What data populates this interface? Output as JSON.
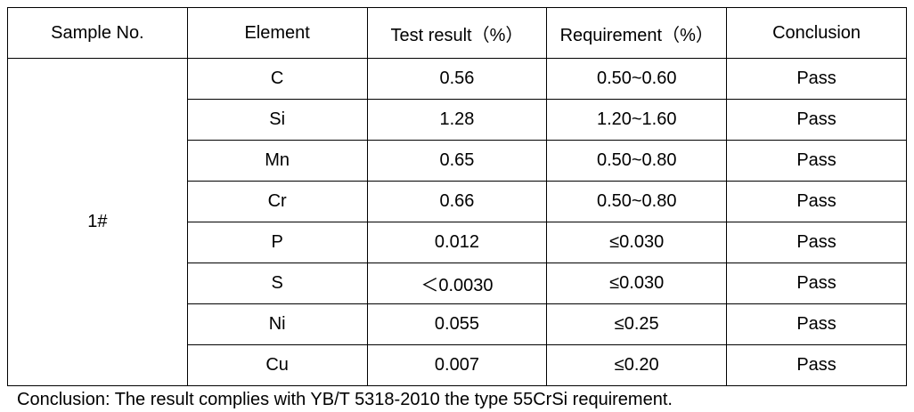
{
  "table": {
    "header": [
      "Sample No.",
      "Element",
      "Test result（%）",
      "Requirement（%）",
      "Conclusion"
    ],
    "sample": "1#",
    "rows": [
      [
        "C",
        "0.56",
        "0.50~0.60",
        "Pass"
      ],
      [
        "Si",
        "1.28",
        "1.20~1.60",
        "Pass"
      ],
      [
        "Mn",
        "0.65",
        "0.50~0.80",
        "Pass"
      ],
      [
        "Cr",
        "0.66",
        "0.50~0.80",
        "Pass"
      ],
      [
        "P",
        "0.012",
        "≤0.030",
        "Pass"
      ],
      [
        "S",
        "＜0.0030",
        "≤0.030",
        "Pass"
      ],
      [
        "Ni",
        "0.055",
        "≤0.25",
        "Pass"
      ],
      [
        "Cu",
        "0.007",
        "≤0.20",
        "Pass"
      ]
    ]
  },
  "note": "Conclusion: The result complies with YB/T 5318-2010 the type 55CrSi requirement."
}
